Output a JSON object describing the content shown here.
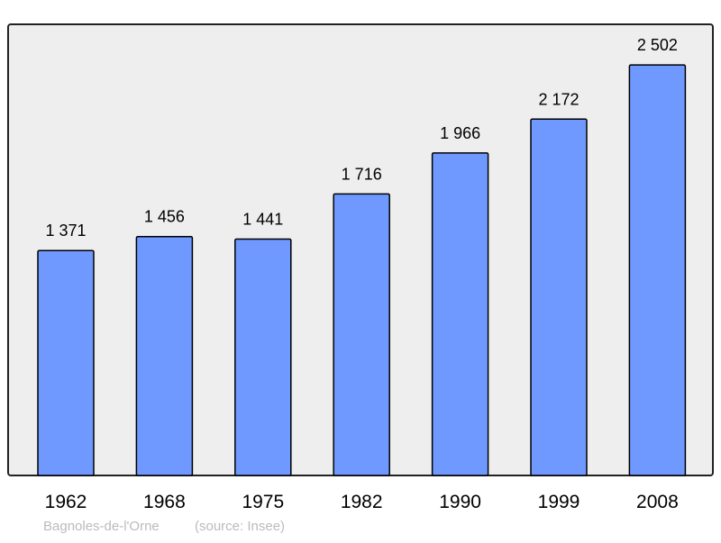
{
  "chart_data": {
    "type": "bar",
    "categories": [
      "1962",
      "1968",
      "1975",
      "1982",
      "1990",
      "1999",
      "2008"
    ],
    "values": [
      1371,
      1456,
      1441,
      1716,
      1966,
      2172,
      2502
    ],
    "title": "",
    "xlabel": "",
    "ylabel": "",
    "ylim": [
      0,
      2750
    ],
    "grid": false,
    "data_labels": true,
    "colors": {
      "bar": "#7099ff",
      "bar_stroke": "#000000",
      "plot_bg": "#eeeeee",
      "footer": "#bbbbbb"
    }
  },
  "footer": {
    "place": "Bagnoles-de-l'Orne",
    "source": "(source: Insee)"
  }
}
